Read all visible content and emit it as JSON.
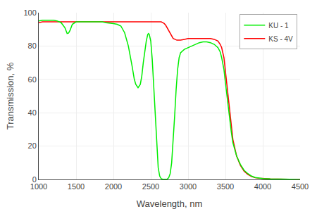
{
  "chart_data": {
    "type": "line",
    "xlabel": "Wavelength, nm",
    "ylabel": "Transmission, %",
    "xlim": [
      1000,
      4500
    ],
    "ylim": [
      0,
      100
    ],
    "xticks": [
      1000,
      1500,
      2000,
      2500,
      3000,
      3500,
      4000,
      4500
    ],
    "yticks": [
      0,
      20,
      40,
      60,
      80,
      100
    ],
    "grid": true,
    "legend": "upper right",
    "series": [
      {
        "name": "KU - 1",
        "color": "#00ee00",
        "line_style": "solid",
        "x": [
          1000,
          1050,
          1100,
          1150,
          1200,
          1250,
          1300,
          1350,
          1380,
          1400,
          1420,
          1450,
          1480,
          1500,
          1550,
          1600,
          1650,
          1700,
          1750,
          1800,
          1850,
          1900,
          1950,
          2000,
          2050,
          2100,
          2150,
          2200,
          2250,
          2280,
          2300,
          2330,
          2360,
          2380,
          2400,
          2420,
          2440,
          2460,
          2470,
          2480,
          2500,
          2520,
          2540,
          2560,
          2580,
          2600,
          2620,
          2640,
          2660,
          2680,
          2700,
          2720,
          2740,
          2760,
          2780,
          2800,
          2820,
          2840,
          2860,
          2880,
          2900,
          2950,
          3000,
          3050,
          3100,
          3150,
          3200,
          3250,
          3300,
          3350,
          3400,
          3430,
          3450,
          3480,
          3500,
          3520,
          3550,
          3580,
          3600,
          3650,
          3700,
          3750,
          3800,
          3850,
          3900,
          3950,
          4000,
          4100,
          4200,
          4300,
          4400,
          4500
        ],
        "values": [
          95.0,
          95.5,
          95.5,
          95.5,
          95.5,
          95.0,
          94.0,
          91.0,
          87.5,
          87.8,
          89.5,
          93.0,
          94.0,
          94.5,
          94.5,
          94.5,
          94.5,
          94.5,
          94.5,
          94.5,
          94.5,
          94.0,
          93.8,
          93.5,
          93.0,
          92.0,
          88.0,
          80.0,
          68.0,
          60.0,
          57.0,
          55.0,
          57.0,
          62.0,
          70.0,
          77.0,
          83.0,
          87.0,
          87.5,
          87.0,
          83.0,
          72.0,
          55.0,
          35.0,
          18.0,
          7.0,
          2.0,
          0.5,
          0.1,
          0.1,
          0.1,
          0.2,
          1.0,
          3.5,
          10.0,
          22.0,
          38.0,
          54.0,
          66.0,
          73.0,
          76.0,
          78.0,
          79.0,
          80.0,
          81.0,
          82.0,
          82.5,
          82.5,
          82.0,
          81.0,
          79.0,
          76.5,
          73.0,
          66.0,
          58.0,
          50.0,
          38.0,
          28.0,
          22.0,
          14.0,
          9.0,
          5.5,
          3.5,
          2.0,
          1.2,
          0.8,
          0.5,
          0.3,
          0.2,
          0.1,
          0.1,
          0.05
        ]
      },
      {
        "name": "KS - 4V",
        "color": "#ff0000",
        "line_style": "solid",
        "x": [
          1000,
          1050,
          1100,
          1150,
          1200,
          1250,
          1300,
          1350,
          1400,
          1450,
          1500,
          1550,
          1600,
          1650,
          1700,
          1750,
          1800,
          1850,
          1900,
          1950,
          2000,
          2050,
          2100,
          2150,
          2200,
          2250,
          2300,
          2350,
          2400,
          2450,
          2500,
          2550,
          2600,
          2640,
          2660,
          2680,
          2700,
          2720,
          2740,
          2760,
          2780,
          2800,
          2850,
          2900,
          2950,
          3000,
          3050,
          3100,
          3150,
          3200,
          3250,
          3300,
          3350,
          3400,
          3430,
          3450,
          3480,
          3500,
          3520,
          3550,
          3580,
          3600,
          3650,
          3700,
          3750,
          3800,
          3850,
          3900,
          3950,
          4000,
          4100,
          4200,
          4300,
          4400,
          4500
        ],
        "values": [
          94.0,
          94.5,
          94.5,
          94.5,
          94.5,
          94.5,
          94.5,
          94.5,
          94.5,
          94.5,
          94.5,
          94.5,
          94.5,
          94.5,
          94.5,
          94.5,
          94.5,
          94.5,
          94.5,
          94.5,
          94.5,
          94.5,
          94.5,
          94.5,
          94.5,
          94.5,
          94.5,
          94.5,
          94.5,
          94.5,
          94.5,
          94.5,
          94.5,
          94.5,
          94.0,
          93.5,
          92.5,
          91.0,
          89.5,
          88.0,
          86.0,
          84.5,
          83.5,
          83.5,
          84.0,
          84.5,
          84.5,
          84.5,
          84.5,
          84.5,
          84.5,
          84.5,
          84.0,
          83.0,
          81.0,
          79.0,
          73.0,
          65.0,
          56.0,
          43.0,
          31.0,
          24.0,
          14.0,
          8.5,
          5.0,
          3.0,
          1.8,
          1.0,
          0.7,
          0.5,
          0.3,
          0.2,
          0.1,
          0.1,
          0.05
        ]
      }
    ]
  }
}
